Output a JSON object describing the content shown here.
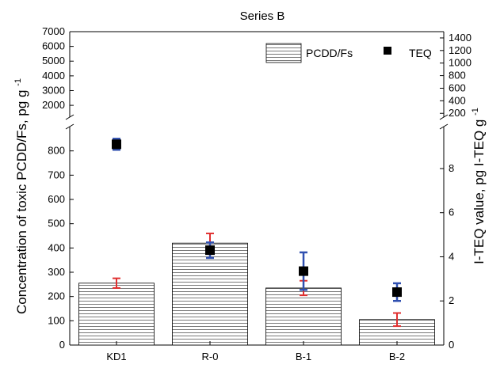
{
  "chart_data": {
    "type": "bar",
    "title": "Series B",
    "categories": [
      "KD1",
      "R-0",
      "B-1",
      "B-2"
    ],
    "xlabel": "",
    "ylabel": "Concentration of toxic PCDD/Fs, pg g",
    "ylabel_sup": "-1",
    "y2label": "I-TEQ value, pg I-TEQ g",
    "y2label_sup": "-1",
    "legend": {
      "position": "top-right",
      "bar_label": "PCDD/Fs",
      "marker_label": "TEQ"
    },
    "y_axis": {
      "lower_range": [
        0,
        900
      ],
      "lower_ticks": [
        0,
        100,
        200,
        300,
        400,
        500,
        600,
        700,
        800
      ],
      "upper_range": [
        1200,
        7000
      ],
      "upper_ticks": [
        2000,
        3000,
        4000,
        5000,
        6000,
        7000
      ],
      "break": "axis break between 900 and 1200"
    },
    "y2_axis": {
      "lower_range": [
        0,
        9.9
      ],
      "lower_ticks": [
        0,
        2,
        4,
        6,
        8
      ],
      "upper_range": [
        140,
        1500
      ],
      "upper_ticks": [
        200,
        400,
        600,
        800,
        1000,
        1200,
        1400
      ]
    },
    "series": [
      {
        "name": "PCDD/Fs",
        "kind": "bar",
        "axis": "left",
        "values": [
          255,
          420,
          235,
          105
        ],
        "error": [
          20,
          40,
          30,
          27
        ],
        "error_color": "#e03030",
        "fill": "horizontal-hatch"
      },
      {
        "name": "TEQ",
        "kind": "marker",
        "axis": "right",
        "values": [
          9.1,
          4.3,
          3.35,
          2.4
        ],
        "error": [
          0.25,
          0.35,
          0.85,
          0.4
        ],
        "error_color": "#3050b0"
      }
    ]
  }
}
